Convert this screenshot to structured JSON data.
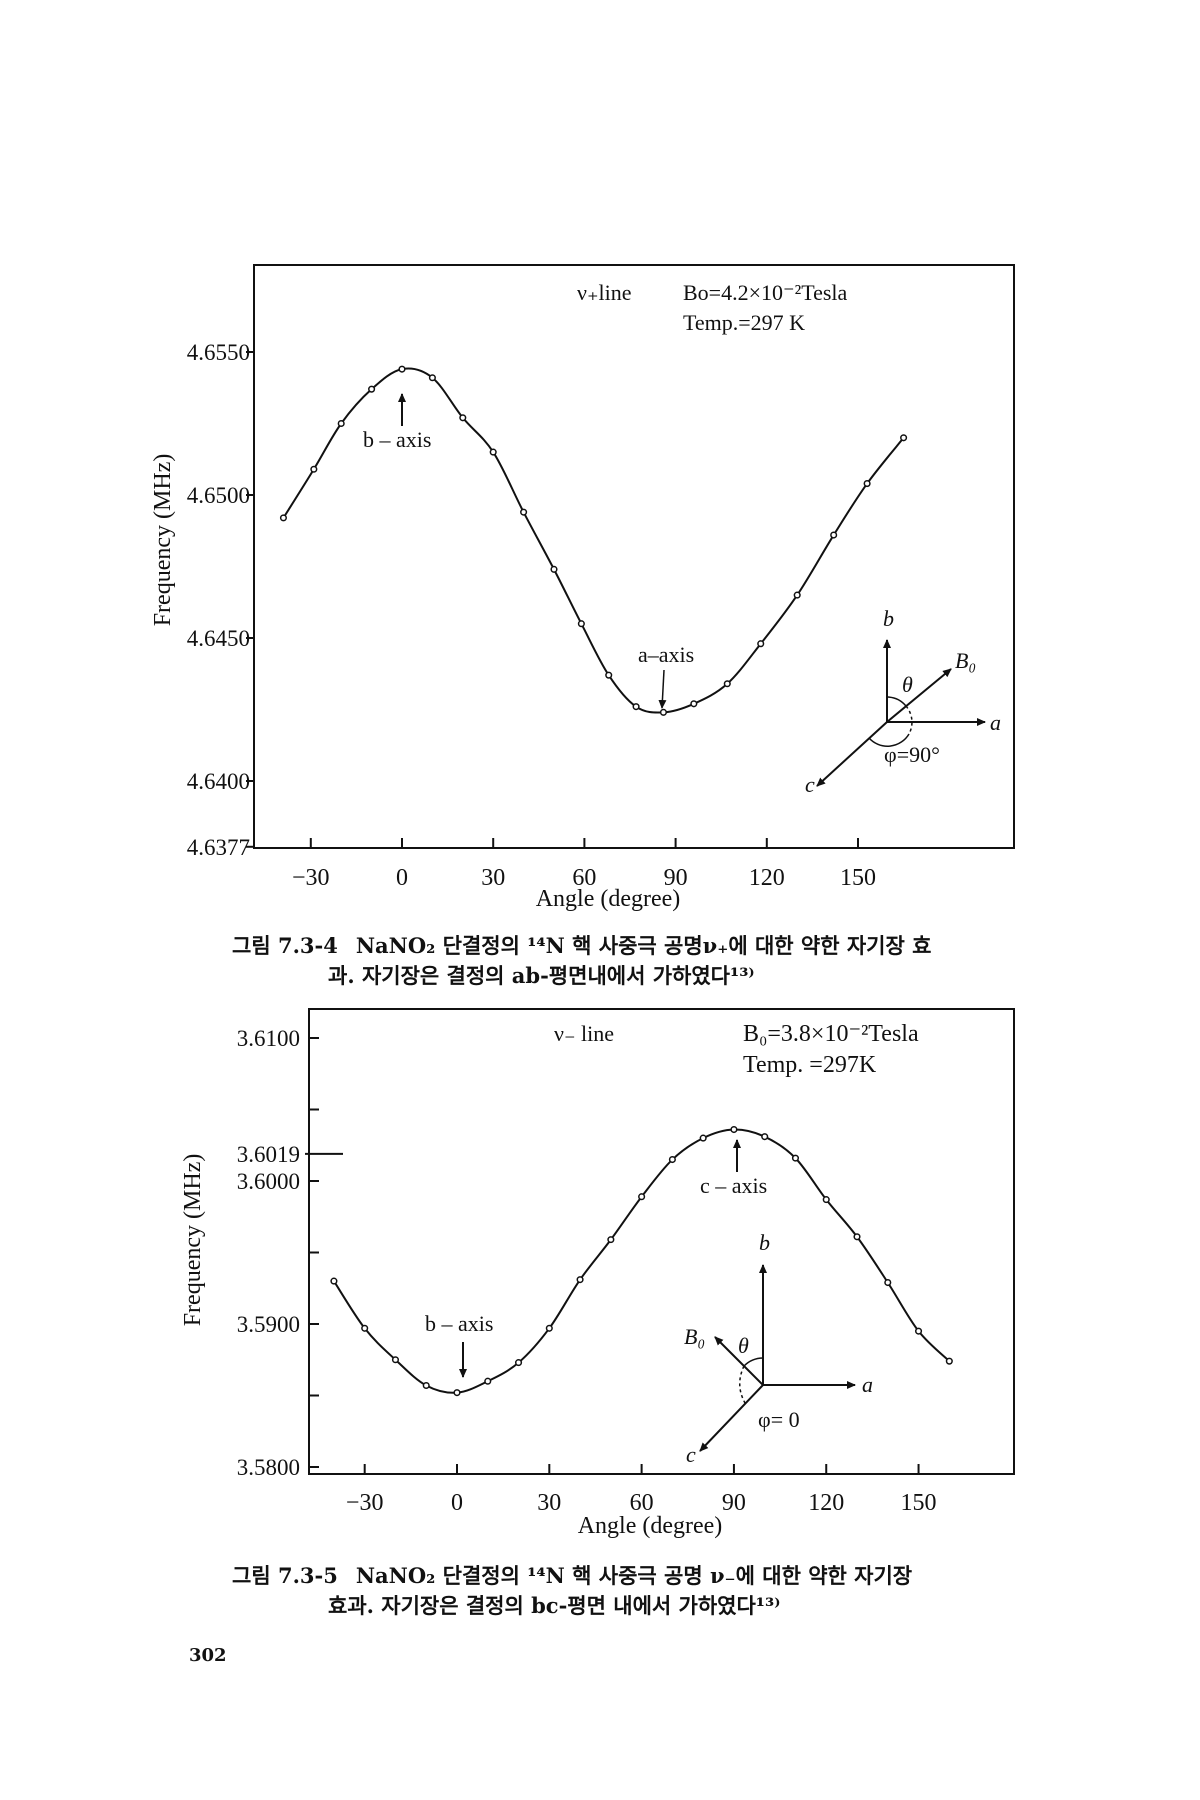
{
  "page_number": "302",
  "figures": [
    {
      "label": "그림 7.3-4",
      "caption_line1": "NaNO₂ 단결정의 ¹⁴N 핵 사중극 공명ν₊에 대한 약한 자기장 효",
      "caption_line2": "과. 자기장은 결정의 ab-평면내에서 가하였다¹³⁾",
      "line_label": "ν₊line",
      "field_label": "Bo=4.2×10⁻²Tesla",
      "temp_label": "Temp.=297 K",
      "peak_annotation": "b – axis",
      "trough_annotation": "a–axis",
      "inset": {
        "b": "b",
        "a": "a",
        "c": "c",
        "B": "B₀",
        "theta": "θ",
        "phi": "φ=90°"
      }
    },
    {
      "label": "그림 7.3-5",
      "caption_line1": "NaNO₂ 단결정의 ¹⁴N 핵 사중극 공명 ν₋에 대한 약한 자기장",
      "caption_line2": "효과. 자기장은 결정의 bc-평면 내에서 가하였다¹³⁾",
      "line_label": "ν₋ line",
      "field_label": "B₀=3.8×10⁻²Tesla",
      "temp_label": "Temp. =297K",
      "peak_annotation": "c – axis",
      "trough_annotation": "b – axis",
      "inset": {
        "b": "b",
        "a": "a",
        "c": "c",
        "B": "B₀",
        "theta": "θ",
        "phi": "φ= 0"
      }
    }
  ],
  "chart_data": [
    {
      "type": "line",
      "title": "ν+ line",
      "xlabel": "Angle (degree)",
      "ylabel": "Frequency (MHz)",
      "xlim": [
        -45,
        200
      ],
      "ylim": [
        4.6377,
        4.6575
      ],
      "xticks": [
        -30,
        0,
        30,
        60,
        90,
        120,
        150
      ],
      "yticks": [
        4.655,
        4.65,
        4.645,
        4.64,
        4.6377
      ],
      "ytick_labels": [
        "4.6550",
        "4.6500",
        "4.6450",
        "4.6400",
        "4.6377"
      ],
      "grid": false,
      "x": [
        -39,
        -29,
        -20,
        -10,
        0,
        10,
        20,
        30,
        40,
        50,
        59,
        68,
        77,
        86,
        96,
        107,
        118,
        130,
        142,
        153,
        165
      ],
      "y": [
        4.6492,
        4.6509,
        4.6525,
        4.6537,
        4.6544,
        4.6541,
        4.6527,
        4.6515,
        4.6494,
        4.6474,
        4.6455,
        4.6437,
        4.6426,
        4.6424,
        4.6427,
        4.6434,
        4.6448,
        4.6465,
        4.6486,
        4.6504,
        4.652
      ]
    },
    {
      "type": "line",
      "title": "ν− line",
      "xlabel": "Angle (degree)",
      "ylabel": "Frequency (MHz)",
      "xlim": [
        -50,
        200
      ],
      "ylim": [
        3.58,
        3.6123
      ],
      "xticks": [
        -30,
        0,
        30,
        60,
        90,
        120,
        150
      ],
      "yticks": [
        3.61,
        3.6019,
        3.6,
        3.59,
        3.58
      ],
      "ytick_labels": [
        "3.6100",
        "3.6019",
        "3.6000",
        "3.5900",
        "3.5800"
      ],
      "grid": false,
      "x": [
        -40,
        -30,
        -20,
        -10,
        0,
        10,
        20,
        30,
        40,
        50,
        60,
        70,
        80,
        90,
        100,
        110,
        120,
        130,
        140,
        150,
        160
      ],
      "y": [
        3.593,
        3.5897,
        3.5875,
        3.5857,
        3.5852,
        3.586,
        3.5873,
        3.5897,
        3.5931,
        3.5959,
        3.5989,
        3.6015,
        3.603,
        3.6036,
        3.6031,
        3.6016,
        3.5987,
        3.5961,
        3.5929,
        3.5895,
        3.5874
      ]
    }
  ]
}
